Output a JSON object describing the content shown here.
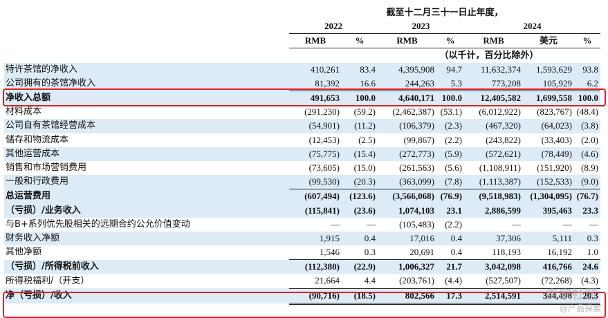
{
  "header": {
    "period": "截至十二月三十一日止年度，",
    "years": [
      "2022",
      "2023",
      "2024"
    ],
    "currency": [
      "RMB",
      "%",
      "RMB",
      "%",
      "RMB",
      "美元",
      "%"
    ],
    "note": "（以千计，百分比除外）"
  },
  "rows": [
    {
      "label": "特许茶馆的净收入",
      "values": [
        "410,261",
        "83.4",
        "4,395,908",
        "94.7",
        "11,632,374",
        "1,593,629",
        "93.8"
      ]
    },
    {
      "label": "公司拥有的茶馆净收入",
      "values": [
        "81,392",
        "16.6",
        "244,263",
        "5.3",
        "773,208",
        "105,929",
        "6.2"
      ]
    },
    {
      "label": "净收入总额",
      "values": [
        "491,653",
        "100.0",
        "4,640,171",
        "100.0",
        "12,405,582",
        "1,699,558",
        "100.0"
      ]
    },
    {
      "label": "材料成本",
      "values": [
        "(291,230)",
        "(59.2)",
        "(2,462,387)",
        "(53.1)",
        "(6,012,922)",
        "(823,767)",
        "(48.4)"
      ]
    },
    {
      "label": "公司自有茶馆经营成本",
      "values": [
        "(54,901)",
        "(11.2)",
        "(106,379)",
        "(2.3)",
        "(467,320)",
        "(64,023)",
        "(3.8)"
      ]
    },
    {
      "label": "储存和物流成本",
      "values": [
        "(12,453)",
        "(2.5)",
        "(99,867)",
        "(2.2)",
        "(243,822)",
        "(33,403)",
        "(2.0)"
      ]
    },
    {
      "label": "其他运营成本",
      "values": [
        "(75,775)",
        "(15.4)",
        "(272,773)",
        "(5.9)",
        "(572,621)",
        "(78,449)",
        "(4.6)"
      ]
    },
    {
      "label": "销售和市场营销费用",
      "values": [
        "(73,605)",
        "(15.0)",
        "(261,563)",
        "(5.6)",
        "(1,108,911)",
        "(151,920)",
        "(8.9)"
      ]
    },
    {
      "label": "一般和行政费用",
      "values": [
        "(99,530)",
        "(20.3)",
        "(363,099)",
        "(7.8)",
        "(1,113,387)",
        "(152,533)",
        "(9.0)"
      ]
    },
    {
      "label": "总运营费用",
      "values": [
        "(607,494)",
        "(123.6)",
        "(3,566,068)",
        "(76.9)",
        "(9,518,983)",
        "(1,304,095)",
        "(76.7)"
      ]
    },
    {
      "label": "（亏损）/业务收入",
      "values": [
        "(115,841)",
        "(23.6)",
        "1,074,103",
        "23.1",
        "2,886,599",
        "395,463",
        "23.3"
      ]
    },
    {
      "label": "与B+系列优先股相关的远期合约公允价值变动",
      "values": [
        "—",
        "—",
        "(105,483)",
        "(2.2)",
        "—",
        "—",
        "—"
      ]
    },
    {
      "label": "财务收入净额",
      "values": [
        "1,915",
        "0.4",
        "17,016",
        "0.4",
        "37,306",
        "5,111",
        "0.3"
      ]
    },
    {
      "label": "其他净额",
      "values": [
        "1,546",
        "0.3",
        "20,691",
        "0.4",
        "118,193",
        "16,192",
        "1.0"
      ]
    },
    {
      "label": "（亏损）/所得税前收入",
      "values": [
        "(112,380)",
        "(22.9)",
        "1,006,327",
        "21.7",
        "3,042,098",
        "416,766",
        "24.6"
      ]
    },
    {
      "label": "所得税福利/（开支）",
      "values": [
        "21,664",
        "4.4",
        "(203,761)",
        "(4.4)",
        "(527,507)",
        "(72,268)",
        "(4.3)"
      ]
    },
    {
      "label": "净（亏损）/收入",
      "values": [
        "(90,716)",
        "(18.5)",
        "802,566",
        "17.3",
        "2,514,591",
        "344,498",
        "20.3"
      ]
    }
  ],
  "watermark": {
    "main": "卖家社区",
    "sub": "@产品探索"
  },
  "colors": {
    "shade": "#dcebf6",
    "highlight": "#e02020"
  }
}
